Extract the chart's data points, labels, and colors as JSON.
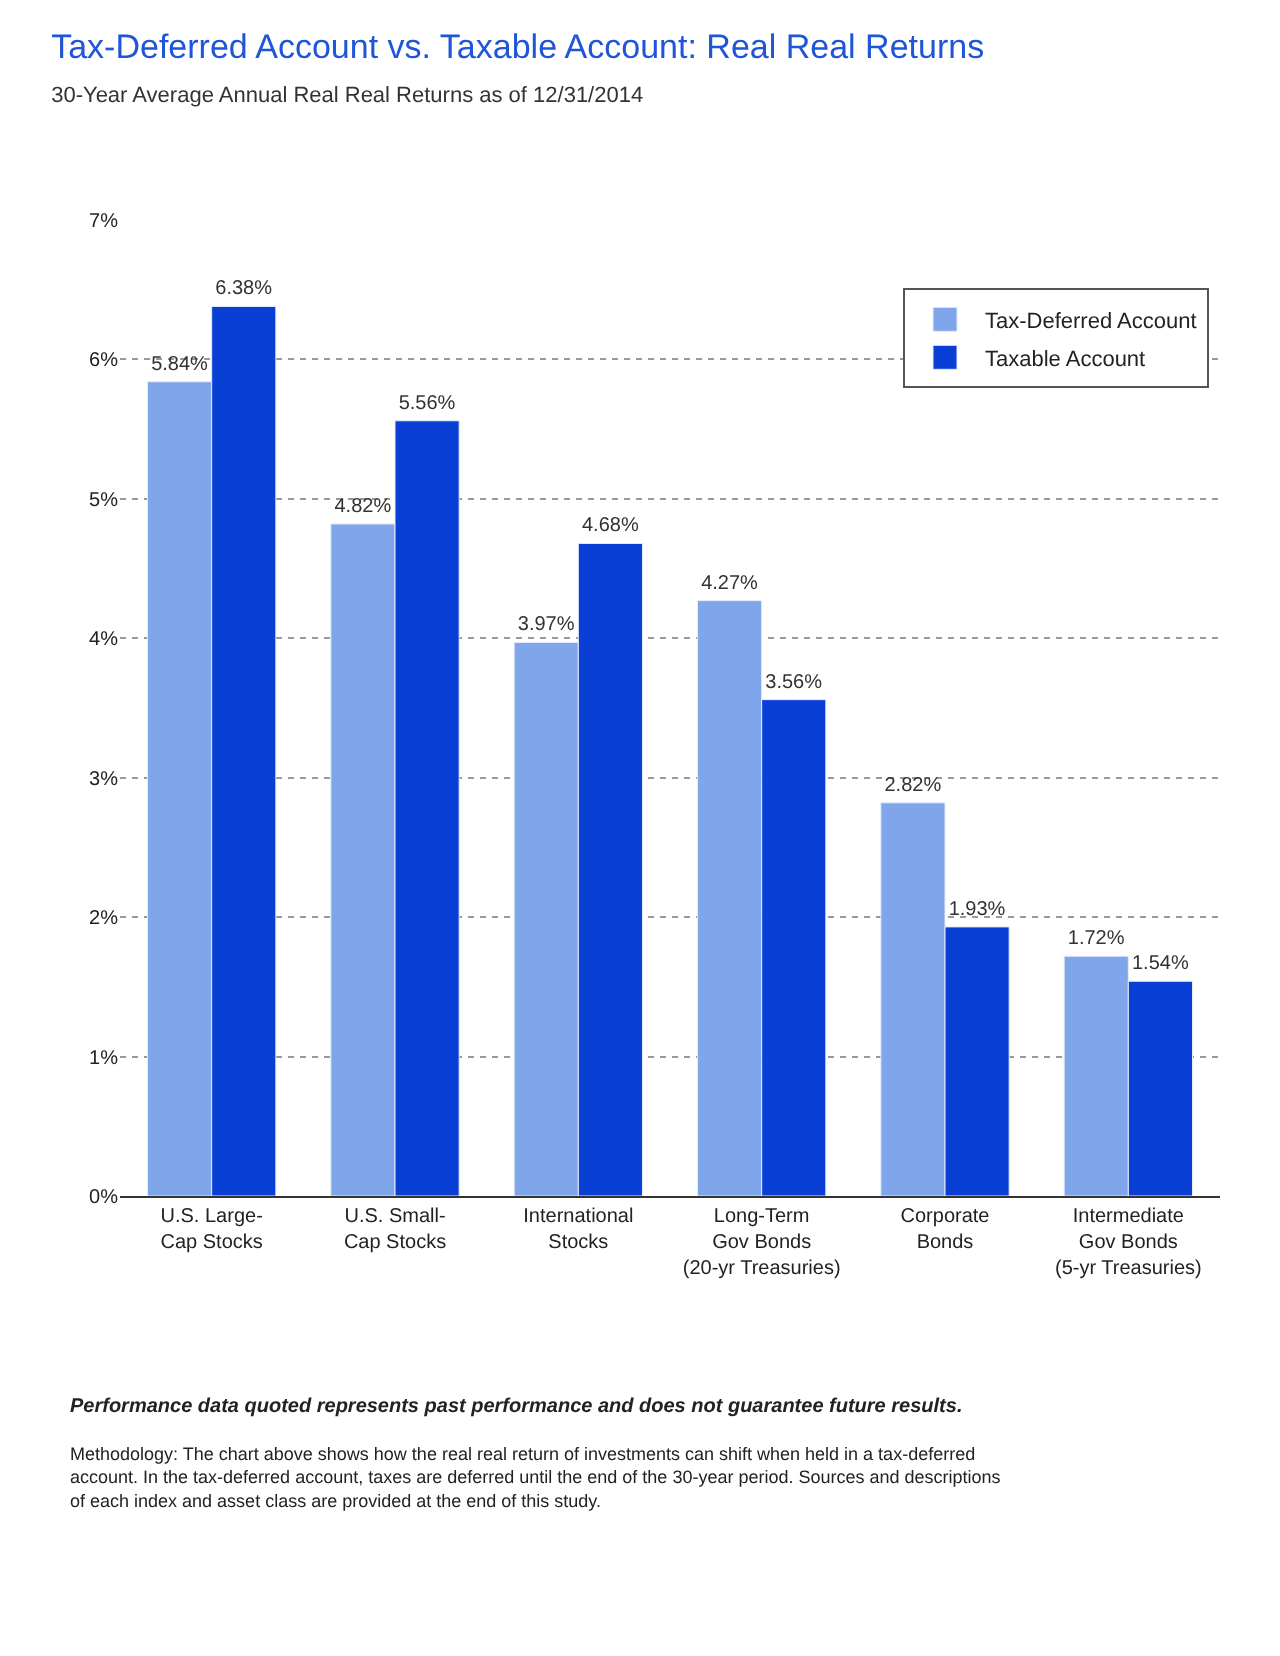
{
  "chart_data": {
    "type": "bar",
    "title": "Tax-Deferred Account vs. Taxable Account: Real Real Returns",
    "subtitle": "30-Year Average Annual Real Real Returns as of 12/31/2014",
    "categories": [
      "U.S. Large-\nCap Stocks",
      "U.S. Small-\nCap Stocks",
      "International\nStocks",
      "Long-Term\nGov Bonds\n(20-yr Treasuries)",
      "Corporate\nBonds",
      "Intermediate\nGov Bonds\n(5-yr Treasuries)"
    ],
    "series": [
      {
        "name": "Tax-Deferred Account",
        "color": "#7fa6ea",
        "values": [
          5.84,
          4.82,
          3.97,
          4.27,
          2.82,
          1.72
        ],
        "value_labels": [
          "5.84%",
          "4.82%",
          "3.97%",
          "4.27%",
          "2.82%",
          "1.72%"
        ]
      },
      {
        "name": "Taxable Account",
        "color": "#0a3fd6",
        "values": [
          6.38,
          5.56,
          4.68,
          3.56,
          1.93,
          1.54
        ],
        "value_labels": [
          "6.38%",
          "5.56%",
          "4.68%",
          "3.56%",
          "1.93%",
          "1.54%"
        ]
      }
    ],
    "ylim": [
      0,
      7
    ],
    "yticks": [
      {
        "value": 0,
        "label": "0%"
      },
      {
        "value": 1,
        "label": "1%"
      },
      {
        "value": 2,
        "label": "2%"
      },
      {
        "value": 3,
        "label": "3%"
      },
      {
        "value": 4,
        "label": "4%"
      },
      {
        "value": 5,
        "label": "5%"
      },
      {
        "value": 6,
        "label": "6%"
      },
      {
        "value": 7,
        "label": "7%"
      }
    ],
    "grid": "y",
    "legend": "top right",
    "annotations": [
      "Performance data quoted represents past performance and does not guarantee future results.",
      "Methodology: The chart above shows how the real real return of investments can shift when held in a tax-deferred account. In the tax-deferred account, taxes are deferred until the end of the 30-year period. Sources and descriptions of each index and asset class are provided at the end of this study."
    ]
  }
}
